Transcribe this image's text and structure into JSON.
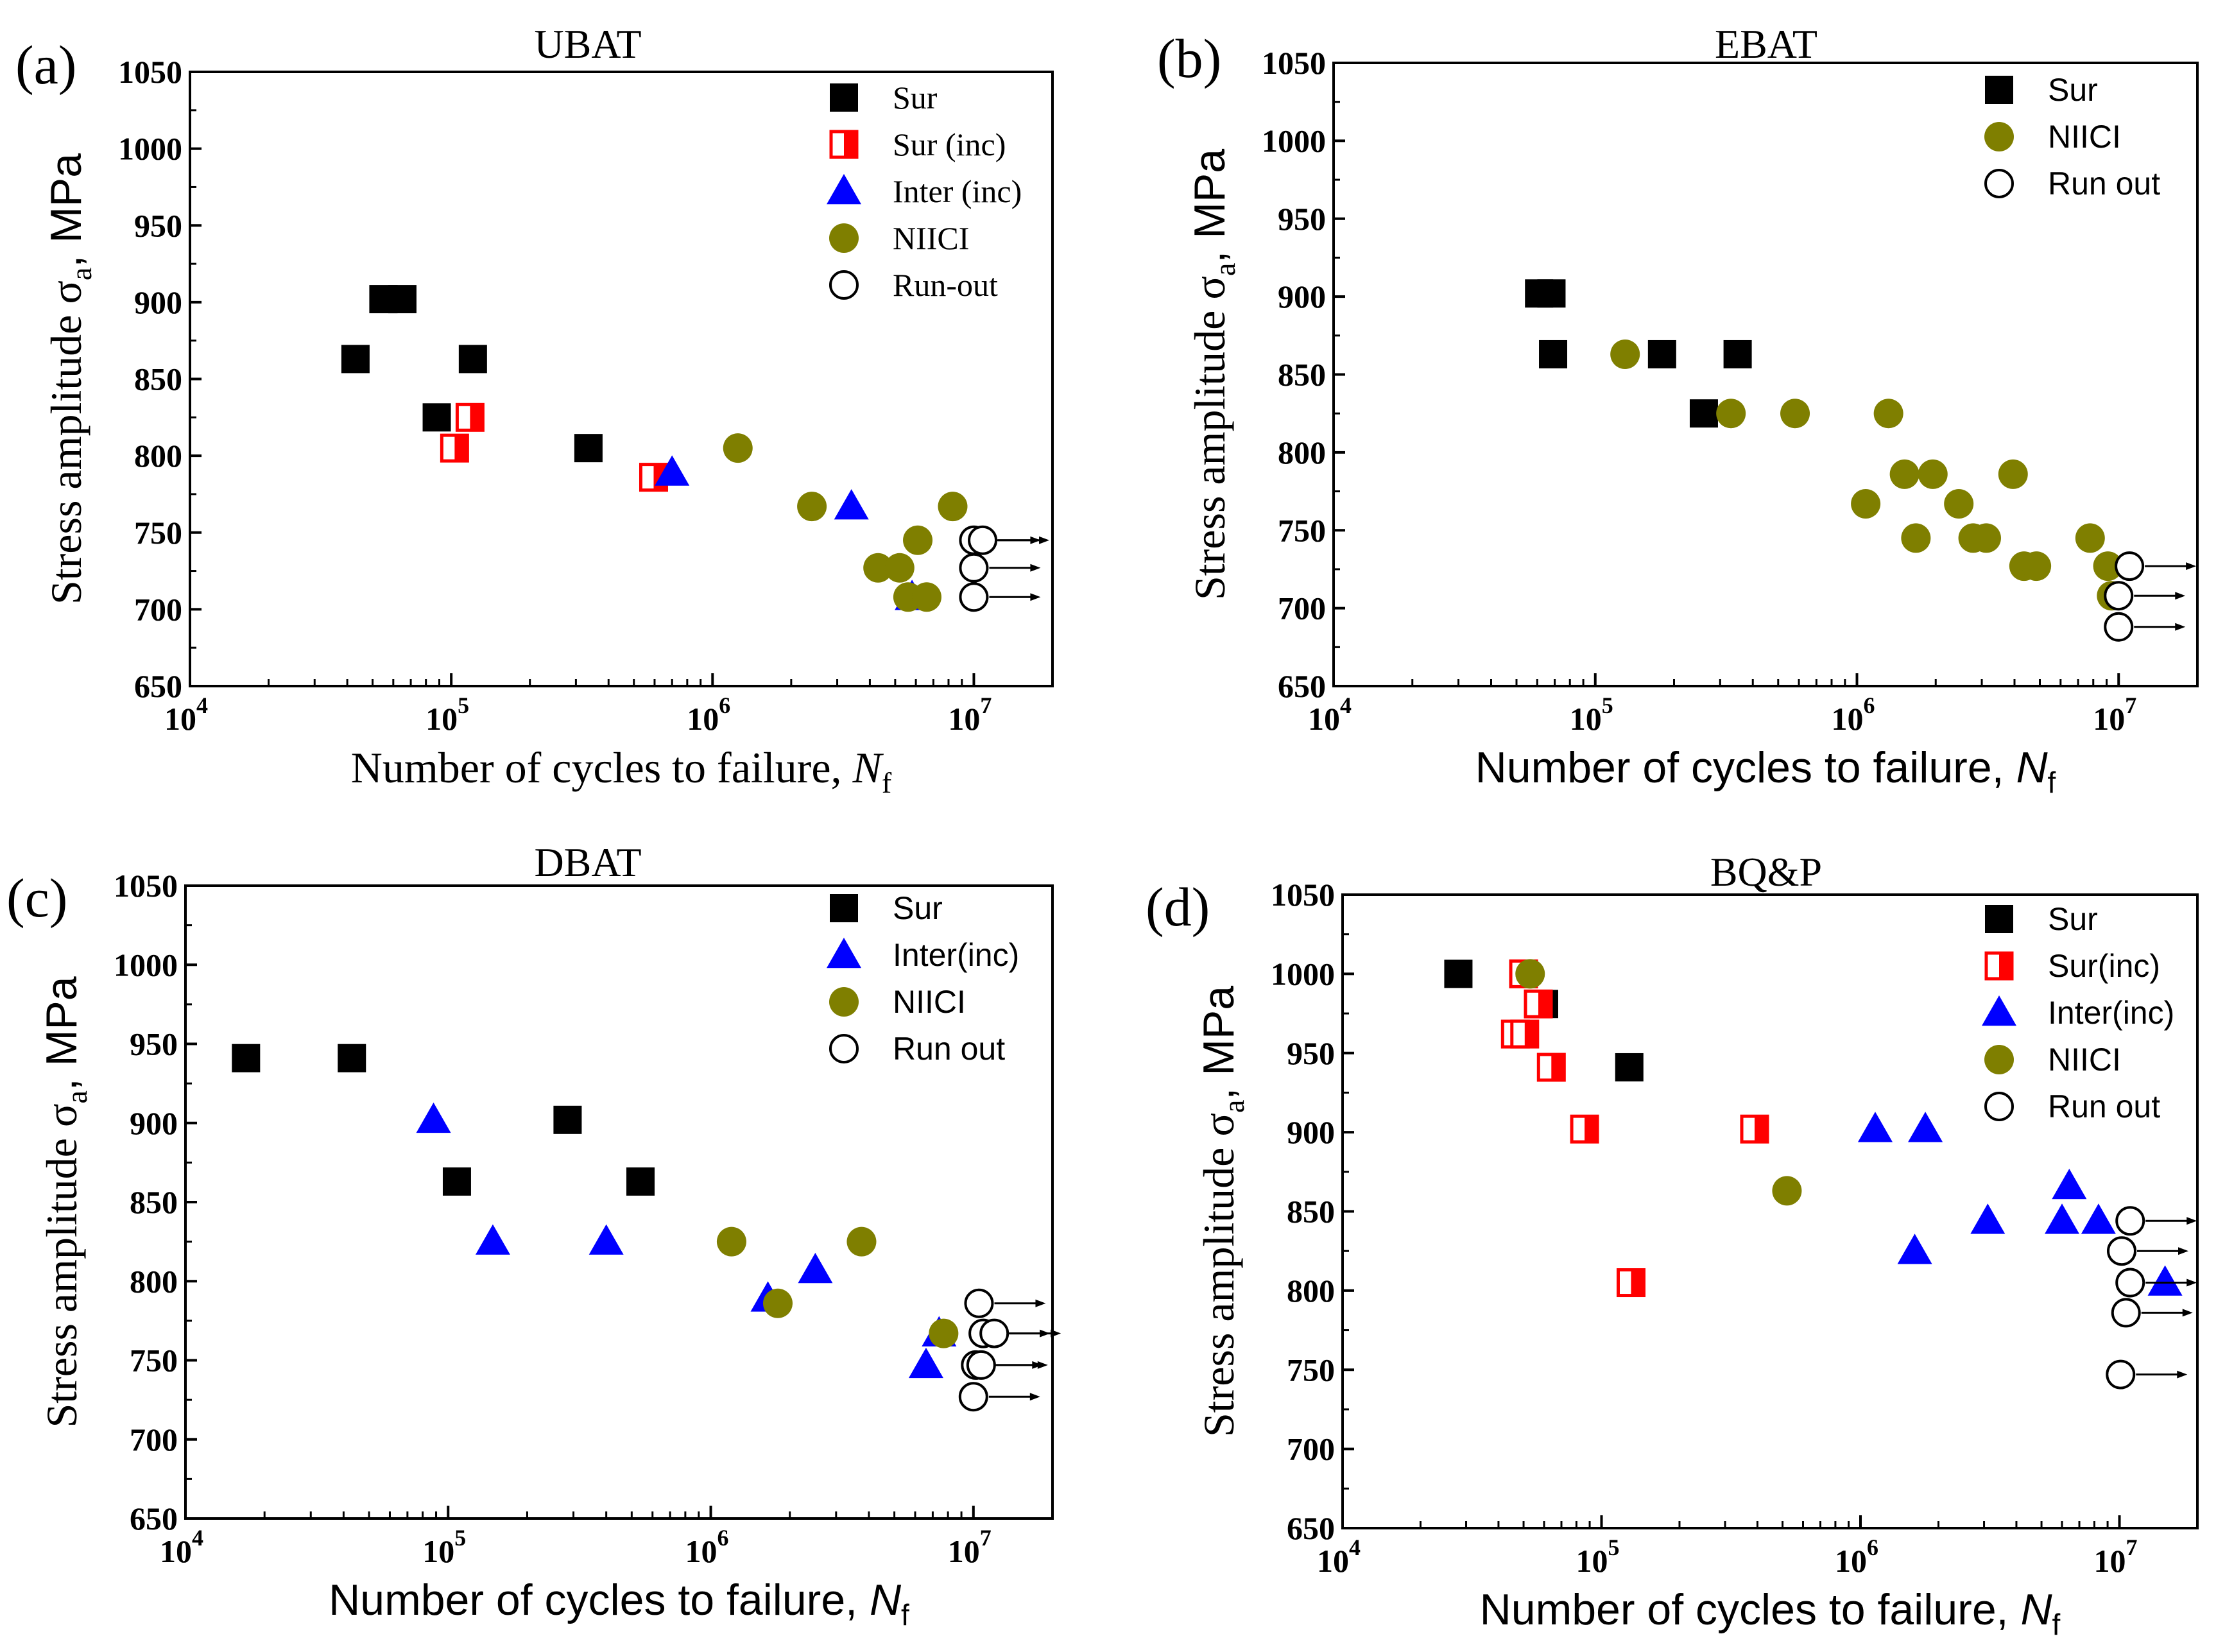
{
  "colors": {
    "sur": "#000000",
    "inc": "#ff0000",
    "inter": "#0000ff",
    "niici": "#7f7f00",
    "runout": "#000000"
  },
  "chart_data": [
    {
      "type": "scatter",
      "panel_label": "(a)",
      "title": "UBAT",
      "xlabel_text": "Number of cycles to failure, ",
      "xlabel_var": "N",
      "xlabel_sub": "f",
      "ylabel_text": "Stress amplitude σ",
      "ylabel_sub": "a",
      "ylabel_unit": ", MPa",
      "xscale": "log",
      "xlim": [
        10000,
        20000000
      ],
      "ylim": [
        650,
        1050
      ],
      "ytick_labels": [
        "650",
        "700",
        "750",
        "800",
        "850",
        "900",
        "950",
        "1000",
        "1050"
      ],
      "xtick_labels": [
        {
          "base": "10",
          "exp": "4",
          "value": 10000
        },
        {
          "base": "10",
          "exp": "5",
          "value": 100000
        },
        {
          "base": "10",
          "exp": "6",
          "value": 1000000
        },
        {
          "base": "10",
          "exp": "7",
          "value": 10000000
        }
      ],
      "legend_location": "top-right",
      "series": [
        {
          "name": "Sur",
          "marker": "square",
          "color_key": "sur",
          "points": [
            [
              43000,
              863
            ],
            [
              55000,
              902
            ],
            [
              65000,
              902
            ],
            [
              88000,
              825
            ],
            [
              121000,
              863
            ],
            [
              335000,
              805
            ]
          ]
        },
        {
          "name": "Sur (inc)",
          "marker": "halfsquare",
          "color_key": "inc",
          "points": [
            [
              103000,
              805
            ],
            [
              118000,
              825
            ],
            [
              595000,
              786
            ]
          ]
        },
        {
          "name": "Inter (inc)",
          "marker": "triangle",
          "color_key": "inter",
          "points": [
            [
              700000,
              789
            ],
            [
              3400000,
              767
            ],
            [
              5800000,
              708
            ]
          ]
        },
        {
          "name": "NIICI",
          "marker": "circle",
          "color_key": "niici",
          "points": [
            [
              1250000,
              805
            ],
            [
              2400000,
              767
            ],
            [
              4300000,
              727
            ],
            [
              5200000,
              727
            ],
            [
              5600000,
              708
            ],
            [
              6100000,
              745
            ],
            [
              6600000,
              708
            ],
            [
              8300000,
              767
            ]
          ]
        },
        {
          "name": "Run-out",
          "marker": "opencircle",
          "color_key": "runout",
          "arrow": true,
          "points": [
            [
              10000000,
              745
            ],
            [
              10800000,
              745
            ],
            [
              10000000,
              727
            ],
            [
              10000000,
              708
            ]
          ]
        }
      ]
    },
    {
      "type": "scatter",
      "panel_label": "(b)",
      "title": "EBAT",
      "xlabel_text": "Number of cycles to failure, ",
      "xlabel_var": "N",
      "xlabel_sub": "f",
      "ylabel_text": "Stress amplitude σ",
      "ylabel_sub": "a",
      "ylabel_unit": ", MPa",
      "xscale": "log",
      "xlim": [
        10000,
        20000000
      ],
      "ylim": [
        650,
        1050
      ],
      "ytick_labels": [
        "650",
        "700",
        "750",
        "800",
        "850",
        "900",
        "950",
        "1000",
        "1050"
      ],
      "xtick_labels": [
        {
          "base": "10",
          "exp": "4",
          "value": 10000
        },
        {
          "base": "10",
          "exp": "5",
          "value": 100000
        },
        {
          "base": "10",
          "exp": "6",
          "value": 1000000
        },
        {
          "base": "10",
          "exp": "7",
          "value": 10000000
        }
      ],
      "legend_location": "top-right",
      "series": [
        {
          "name": "Sur",
          "marker": "square",
          "color_key": "sur",
          "points": [
            [
              61000,
              902
            ],
            [
              68000,
              902
            ],
            [
              69000,
              863
            ],
            [
              180000,
              863
            ],
            [
              260000,
              825
            ],
            [
              350000,
              863
            ]
          ]
        },
        {
          "name": "NIICI",
          "marker": "circle",
          "color_key": "niici",
          "points": [
            [
              130000,
              863
            ],
            [
              330000,
              825
            ],
            [
              580000,
              825
            ],
            [
              1080000,
              767
            ],
            [
              1320000,
              825
            ],
            [
              1520000,
              786
            ],
            [
              1680000,
              745
            ],
            [
              1950000,
              786
            ],
            [
              2450000,
              767
            ],
            [
              2780000,
              745
            ],
            [
              3120000,
              745
            ],
            [
              3950000,
              786
            ],
            [
              4350000,
              727
            ],
            [
              4850000,
              727
            ],
            [
              7780000,
              745
            ],
            [
              9100000,
              727
            ],
            [
              9400000,
              708
            ]
          ]
        },
        {
          "name": "Run out",
          "marker": "opencircle",
          "color_key": "runout",
          "arrow": true,
          "points": [
            [
              11000000,
              727
            ],
            [
              10000000,
              708
            ],
            [
              10000000,
              688
            ]
          ]
        }
      ]
    },
    {
      "type": "scatter",
      "panel_label": "(c)",
      "title": "DBAT",
      "xlabel_text": "Number of cycles to failure, ",
      "xlabel_var": "N",
      "xlabel_sub": "f",
      "ylabel_text": "Stress amplitude σ",
      "ylabel_sub": "a",
      "ylabel_unit": ", MPa",
      "xscale": "log",
      "xlim": [
        10000,
        20000000
      ],
      "ylim": [
        650,
        1050
      ],
      "ytick_labels": [
        "650",
        "700",
        "750",
        "800",
        "850",
        "900",
        "950",
        "1000",
        "1050"
      ],
      "xtick_labels": [
        {
          "base": "10",
          "exp": "4",
          "value": 10000
        },
        {
          "base": "10",
          "exp": "5",
          "value": 100000
        },
        {
          "base": "10",
          "exp": "6",
          "value": 1000000
        },
        {
          "base": "10",
          "exp": "7",
          "value": 10000000
        }
      ],
      "legend_location": "top-right",
      "series": [
        {
          "name": "Sur",
          "marker": "square",
          "color_key": "sur",
          "points": [
            [
              17000,
              941
            ],
            [
              43000,
              941
            ],
            [
              108000,
              863
            ],
            [
              285000,
              902
            ],
            [
              540000,
              863
            ]
          ]
        },
        {
          "name": "Inter(inc)",
          "marker": "triangle",
          "color_key": "inter",
          "points": [
            [
              88000,
              902
            ],
            [
              148000,
              825
            ],
            [
              400000,
              825
            ],
            [
              1650000,
              789
            ],
            [
              2500000,
              807
            ],
            [
              6600000,
              747
            ],
            [
              7400000,
              767
            ]
          ]
        },
        {
          "name": "NIICI",
          "marker": "circle",
          "color_key": "niici",
          "points": [
            [
              1200000,
              825
            ],
            [
              1800000,
              786
            ],
            [
              3750000,
              825
            ],
            [
              7700000,
              767
            ]
          ]
        },
        {
          "name": "Run out",
          "marker": "opencircle",
          "color_key": "runout",
          "arrow": true,
          "points": [
            [
              10500000,
              786
            ],
            [
              10900000,
              767
            ],
            [
              12000000,
              767
            ],
            [
              10200000,
              747
            ],
            [
              10700000,
              747
            ],
            [
              10000000,
              727
            ]
          ]
        }
      ]
    },
    {
      "type": "scatter",
      "panel_label": "(d)",
      "title": "BQ&P",
      "xlabel_text": "Number of cycles to failure, ",
      "xlabel_var": "N",
      "xlabel_sub": "f",
      "ylabel_text": "Stress amplitude σ",
      "ylabel_sub": "a",
      "ylabel_unit": ", MPa",
      "xscale": "log",
      "xlim": [
        10000,
        20000000
      ],
      "ylim": [
        650,
        1050
      ],
      "ytick_labels": [
        "650",
        "700",
        "750",
        "800",
        "850",
        "900",
        "950",
        "1000",
        "1050"
      ],
      "xtick_labels": [
        {
          "base": "10",
          "exp": "4",
          "value": 10000
        },
        {
          "base": "10",
          "exp": "5",
          "value": 100000
        },
        {
          "base": "10",
          "exp": "6",
          "value": 1000000
        },
        {
          "base": "10",
          "exp": "7",
          "value": 10000000
        }
      ],
      "legend_location": "top-right",
      "series": [
        {
          "name": "Sur",
          "marker": "square",
          "color_key": "sur",
          "points": [
            [
              28000,
              1000
            ],
            [
              60000,
              981
            ],
            [
              128000,
              941
            ]
          ]
        },
        {
          "name": "Sur(inc)",
          "marker": "halfsquare",
          "color_key": "inc",
          "points": [
            [
              50000,
              1000
            ],
            [
              57000,
              981
            ],
            [
              46500,
              962
            ],
            [
              50500,
              962
            ],
            [
              64000,
              941
            ],
            [
              86000,
              902
            ],
            [
              390000,
              902
            ],
            [
              130000,
              805
            ]
          ]
        },
        {
          "name": "Inter(inc)",
          "marker": "triangle",
          "color_key": "inter",
          "points": [
            [
              1140000,
              902
            ],
            [
              1780000,
              902
            ],
            [
              1620000,
              825
            ],
            [
              3100000,
              844
            ],
            [
              6400000,
              866
            ],
            [
              6000000,
              844
            ],
            [
              8300000,
              844
            ],
            [
              15000000,
              805
            ]
          ]
        },
        {
          "name": "NIICI",
          "marker": "circle",
          "color_key": "niici",
          "points": [
            [
              53000,
              1000
            ],
            [
              520000,
              863
            ]
          ]
        },
        {
          "name": "Run out",
          "marker": "opencircle",
          "color_key": "runout",
          "arrow": true,
          "points": [
            [
              11000000,
              844
            ],
            [
              10200000,
              825
            ],
            [
              11000000,
              805
            ],
            [
              10600000,
              786
            ],
            [
              10100000,
              747
            ]
          ]
        }
      ]
    }
  ]
}
